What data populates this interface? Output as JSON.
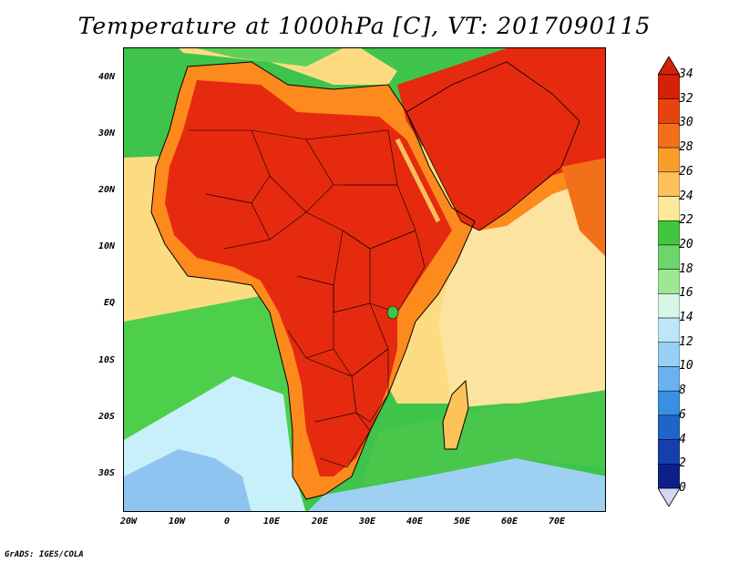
{
  "title": "Temperature at 1000hPa [C], VT: 2017090115",
  "credit": "GrADS: IGES/COLA",
  "map": {
    "latitude_labels": [
      "40N",
      "30N",
      "20N",
      "10N",
      "EQ",
      "10S",
      "20S",
      "30S"
    ],
    "longitude_labels": [
      "20W",
      "10W",
      "0",
      "10E",
      "20E",
      "30E",
      "40E",
      "50E",
      "60E",
      "70E"
    ],
    "ocean_field_colors": {
      "warm_tropical_ocean": "#fddc81",
      "subtropical_ocean": "#3ec44a",
      "cool_ocean": "#c8f0fb",
      "cold_ocean": "#8ec5f0",
      "land_hot": "#e62a0f",
      "land_warm": "#fd8a1c"
    }
  },
  "colorbar": {
    "values": [
      "34",
      "32",
      "30",
      "28",
      "26",
      "24",
      "22",
      "20",
      "18",
      "16",
      "14",
      "12",
      "10",
      "8",
      "6",
      "4",
      "2",
      "0"
    ],
    "colors": [
      "#d42208",
      "#e8430e",
      "#f3701a",
      "#f99d2a",
      "#fdc25a",
      "#fde89a",
      "#40c53f",
      "#6cd66a",
      "#9ee893",
      "#d6f6e6",
      "#bde6f8",
      "#98cff4",
      "#6ab2ee",
      "#3a8fe3",
      "#1f64c9",
      "#163fae",
      "#0d208a"
    ],
    "top_arrow_color": "#d42208",
    "bottom_arrow_color": "#d8d4f6"
  }
}
